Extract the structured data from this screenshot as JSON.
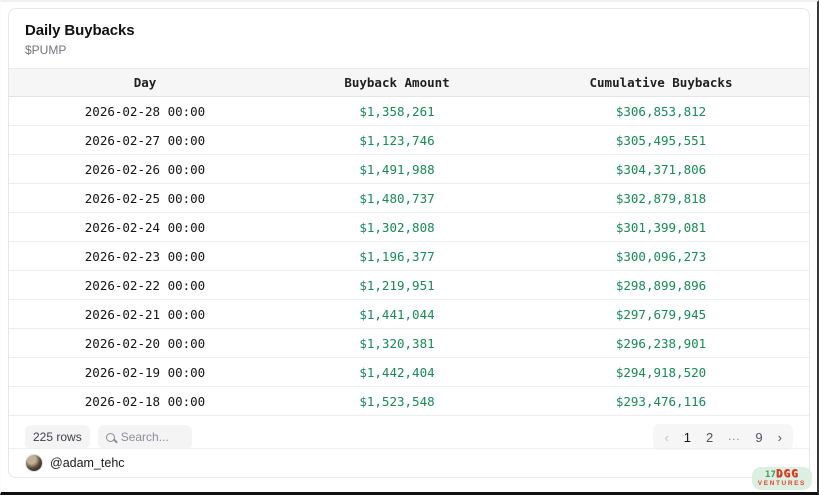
{
  "header": {
    "title": "Daily Buybacks",
    "subtitle": "$PUMP"
  },
  "table": {
    "columns": [
      "Day",
      "Buyback Amount",
      "Cumulative Buybacks"
    ],
    "rows": [
      {
        "day": "2026-02-28 00:00",
        "buyback": "$1,358,261",
        "cumulative": "$306,853,812"
      },
      {
        "day": "2026-02-27 00:00",
        "buyback": "$1,123,746",
        "cumulative": "$305,495,551"
      },
      {
        "day": "2026-02-26 00:00",
        "buyback": "$1,491,988",
        "cumulative": "$304,371,806"
      },
      {
        "day": "2026-02-25 00:00",
        "buyback": "$1,480,737",
        "cumulative": "$302,879,818"
      },
      {
        "day": "2026-02-24 00:00",
        "buyback": "$1,302,808",
        "cumulative": "$301,399,081"
      },
      {
        "day": "2026-02-23 00:00",
        "buyback": "$1,196,377",
        "cumulative": "$300,096,273"
      },
      {
        "day": "2026-02-22 00:00",
        "buyback": "$1,219,951",
        "cumulative": "$298,899,896"
      },
      {
        "day": "2026-02-21 00:00",
        "buyback": "$1,441,044",
        "cumulative": "$297,679,945"
      },
      {
        "day": "2026-02-20 00:00",
        "buyback": "$1,320,381",
        "cumulative": "$296,238,901"
      },
      {
        "day": "2026-02-19 00:00",
        "buyback": "$1,442,404",
        "cumulative": "$294,918,520"
      },
      {
        "day": "2026-02-18 00:00",
        "buyback": "$1,523,548",
        "cumulative": "$293,476,116"
      }
    ]
  },
  "footer": {
    "row_count_label": "225 rows",
    "search_placeholder": "Search...",
    "pagination": {
      "prev": "‹",
      "page_1": "1",
      "page_2": "2",
      "ellipsis": "...",
      "page_9": "9",
      "next": "›",
      "current_page": "1"
    }
  },
  "attribution": {
    "handle": "@adam_tehc"
  },
  "watermark": {
    "prefix": "17",
    "brand": "DGG",
    "label": "VENTURES"
  },
  "colors": {
    "value_green": "#178a55",
    "header_bg": "#f6f6f6",
    "watermark_bg": "#dcefe0",
    "watermark_red": "#df3c26"
  }
}
